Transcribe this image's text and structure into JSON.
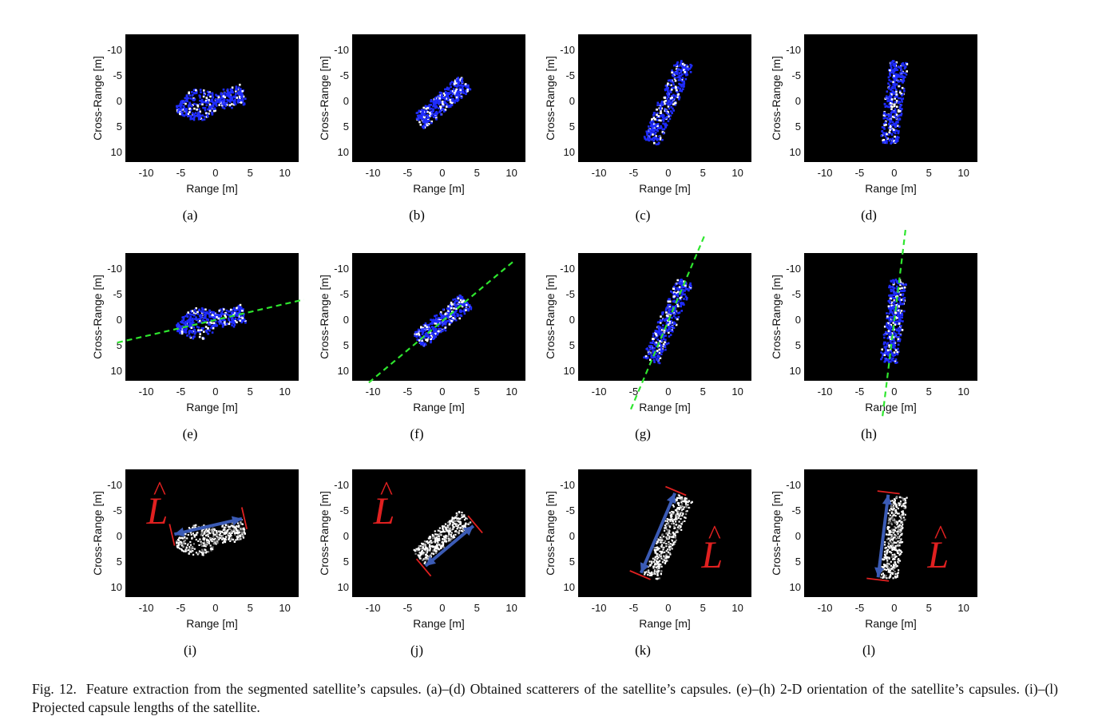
{
  "figure": {
    "caption_label": "Fig. 12.",
    "caption_text": "Feature extraction from the segmented satellite’s capsules. (a)–(d) Obtained scatterers of the satellite’s capsules. (e)–(h) 2-D orientation of the satellite’s capsules. (i)–(l) Projected capsule lengths of the satellite.",
    "panels": [
      {
        "label": "(a)",
        "row": 0,
        "col": 0,
        "ylabel": "Cross-Range [m]",
        "xlabel": "Range [m]",
        "angle_deg": -13,
        "length_m": 10,
        "shape": "fish"
      },
      {
        "label": "(b)",
        "row": 0,
        "col": 1,
        "ylabel": "Cross-Range [m]",
        "xlabel": "Range [m]",
        "angle_deg": -40,
        "length_m": 9,
        "shape": "bar"
      },
      {
        "label": "(c)",
        "row": 0,
        "col": 2,
        "ylabel": "Cross-Range [m]",
        "xlabel": "Range [m]",
        "angle_deg": -67,
        "length_m": 12.5,
        "shape": "bar"
      },
      {
        "label": "(d)",
        "row": 0,
        "col": 3,
        "ylabel": "Cross-Range [m]",
        "xlabel": "Range [m]",
        "angle_deg": -83,
        "length_m": 12,
        "shape": "bar"
      },
      {
        "label": "(e)",
        "row": 1,
        "col": 0,
        "ylabel": "Cross-Range [m]",
        "xlabel": "Range [m]",
        "angle_deg": -13,
        "length_m": 10,
        "shape": "fish",
        "orientation_line": true
      },
      {
        "label": "(f)",
        "row": 1,
        "col": 1,
        "ylabel": "Cross-Range [m]",
        "xlabel": "Range [m]",
        "angle_deg": -40,
        "length_m": 9,
        "shape": "bar",
        "orientation_line": true
      },
      {
        "label": "(g)",
        "row": 1,
        "col": 2,
        "ylabel": "Cross-Range [m]",
        "xlabel": "Range [m]",
        "angle_deg": -67,
        "length_m": 12.5,
        "shape": "bar",
        "orientation_line": true
      },
      {
        "label": "(h)",
        "row": 1,
        "col": 3,
        "ylabel": "Cross-Range [m]",
        "xlabel": "Range [m]",
        "angle_deg": -83,
        "length_m": 12,
        "shape": "bar",
        "orientation_line": true
      },
      {
        "label": "(i)",
        "row": 2,
        "col": 0,
        "ylabel": "Cross-Range [m]",
        "xlabel": "Range [m]",
        "angle_deg": -13,
        "length_m": 10,
        "shape": "fish",
        "length_marker": true,
        "marker_text": "L",
        "marker_side": "left"
      },
      {
        "label": "(j)",
        "row": 2,
        "col": 1,
        "ylabel": "Cross-Range [m]",
        "xlabel": "Range [m]",
        "angle_deg": -40,
        "length_m": 9,
        "shape": "bar",
        "length_marker": true,
        "marker_text": "L",
        "marker_side": "left"
      },
      {
        "label": "(k)",
        "row": 2,
        "col": 2,
        "ylabel": "Cross-Range [m]",
        "xlabel": "Range [m]",
        "angle_deg": -67,
        "length_m": 12.5,
        "shape": "bar",
        "length_marker": true,
        "marker_text": "L",
        "marker_side": "right"
      },
      {
        "label": "(l)",
        "row": 2,
        "col": 3,
        "ylabel": "Cross-Range [m]",
        "xlabel": "Range [m]",
        "angle_deg": -83,
        "length_m": 12,
        "shape": "bar",
        "length_marker": true,
        "marker_text": "L",
        "marker_side": "right"
      }
    ],
    "axis": {
      "xlim": [
        -13,
        12
      ],
      "ylim": [
        -13,
        12
      ],
      "y_reversed": true,
      "x_ticks": [
        -10,
        -5,
        0,
        5,
        10
      ],
      "y_ticks": [
        -10,
        -5,
        0,
        5,
        10
      ],
      "background": "#000000"
    },
    "colors": {
      "scatter_blue": "#1f2cff",
      "scatter_white": "#ffffff",
      "orientation_line": "#2ee62e",
      "length_arrow": "#3b5bb5",
      "length_bracket": "#e02020",
      "marker_text": "#e02020"
    }
  },
  "chart_data": {
    "type": "scatter",
    "title": "",
    "xlabel": "Range [m]",
    "ylabel": "Cross-Range [m]",
    "xlim": [
      -13,
      12
    ],
    "ylim": [
      -13,
      12
    ],
    "x_ticks": [
      -10,
      -5,
      0,
      5,
      10
    ],
    "y_ticks": [
      -10,
      -5,
      0,
      5,
      10
    ],
    "panels": [
      {
        "label": "(a)",
        "center": [
          0,
          0
        ],
        "orientation_deg": 13,
        "extent_m": 10
      },
      {
        "label": "(b)",
        "center": [
          0,
          0
        ],
        "orientation_deg": 40,
        "extent_m": 9
      },
      {
        "label": "(c)",
        "center": [
          0,
          0
        ],
        "orientation_deg": 67,
        "extent_m": 12.5
      },
      {
        "label": "(d)",
        "center": [
          0,
          0
        ],
        "orientation_deg": 83,
        "extent_m": 12
      },
      {
        "label": "(e)",
        "orientation_deg": 13
      },
      {
        "label": "(f)",
        "orientation_deg": 40
      },
      {
        "label": "(g)",
        "orientation_deg": 67
      },
      {
        "label": "(h)",
        "orientation_deg": 83
      },
      {
        "label": "(i)",
        "projected_length_m": 10
      },
      {
        "label": "(j)",
        "projected_length_m": 9
      },
      {
        "label": "(k)",
        "projected_length_m": 12.5
      },
      {
        "label": "(l)",
        "projected_length_m": 12
      }
    ]
  }
}
